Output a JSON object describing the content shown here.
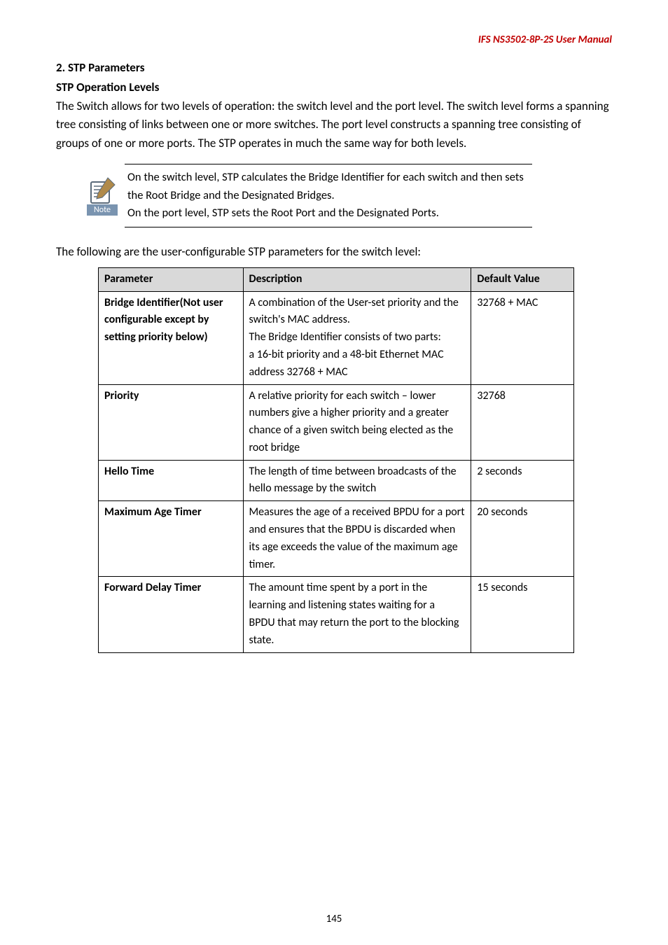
{
  "header": {
    "doc_title": "IFS  NS3502-8P-2S   User  Manual"
  },
  "section": {
    "h1": "2. STP Parameters",
    "h2": "STP Operation Levels",
    "intro": "The Switch allows for two levels of operation: the switch level and the port level. The switch level forms a spanning tree consisting of links between one or more switches. The port level constructs a spanning tree consisting of groups of one or more ports. The STP operates in much the same way for both levels."
  },
  "note": {
    "label": "Note",
    "line1": "On the switch level, STP calculates the Bridge Identifier for each switch and then sets the Root Bridge and the Designated Bridges.",
    "line2": "On the port level, STP sets the Root Port and the Designated Ports."
  },
  "table_intro": "The following are the user-configurable STP parameters for the switch level:",
  "table": {
    "headers": {
      "param": "Parameter",
      "desc": "Description",
      "def": "Default Value"
    },
    "rows": [
      {
        "param": "Bridge Identifier(Not user configurable except by setting priority below)",
        "desc": "A combination of the User-set priority and the switch's MAC address.\nThe Bridge Identifier consists of two parts:\na 16-bit priority and a 48-bit Ethernet MAC address 32768 + MAC",
        "def": "32768 + MAC",
        "param_bold": true
      },
      {
        "param": "Priority",
        "desc": "A relative priority for each switch – lower numbers give a higher priority and a greater chance of a given switch being elected as the root bridge",
        "def": "32768",
        "param_bold": true
      },
      {
        "param": "Hello Time",
        "desc": "The length of time between broadcasts of the hello message by the switch",
        "def": "2 seconds",
        "param_bold": true
      },
      {
        "param": "Maximum Age Timer",
        "desc": "Measures the age of a received BPDU for a port and ensures that the BPDU is discarded when its age exceeds the value of the maximum age timer.",
        "def": "20 seconds",
        "param_bold": true
      },
      {
        "param": "Forward Delay Timer",
        "desc": "The amount time spent by a port in the learning and listening states waiting for a\nBPDU that may return the port to the blocking state.",
        "def": "15 seconds",
        "param_bold": true
      }
    ]
  },
  "page_number": "145",
  "colors": {
    "header_red": "#c00000",
    "table_header_bg": "#d9d9d9",
    "note_label_bg": "#7a94b0"
  }
}
